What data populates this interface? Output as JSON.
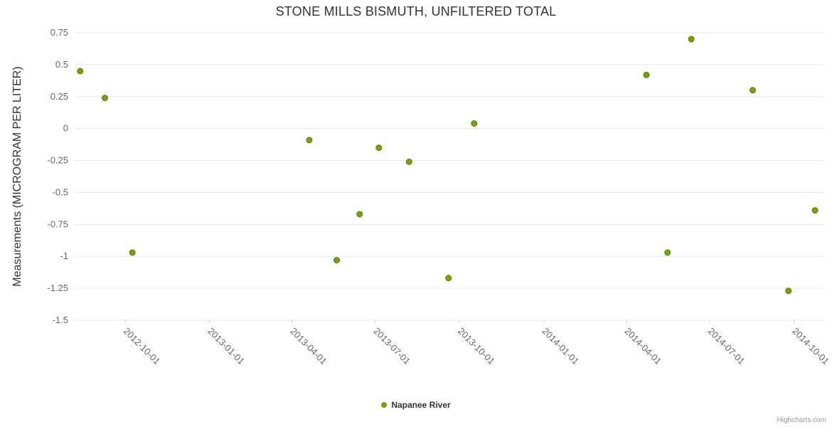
{
  "credits": "Highcharts.com",
  "legend": {
    "items": [
      {
        "label": "Napanee River",
        "color": "#76a30b",
        "stroke": "#5a7d08"
      }
    ]
  },
  "colors": {
    "title_text": "#333333",
    "axis_label_text": "#666666",
    "gridline": "#e6e6e6",
    "tick_mark": "#ccd6eb",
    "point_fill": "#76a30b",
    "point_stroke": "#5a7d08",
    "credits_text": "#999999"
  },
  "chart_data": {
    "type": "scatter",
    "title": "STONE MILLS BISMUTH, UNFILTERED TOTAL",
    "xlabel": "",
    "ylabel": "Measurements (MICROGRAM PER LITER)",
    "grid": "horizontal-only",
    "legend_position": "bottom-center",
    "ylim": [
      -1.5,
      0.75
    ],
    "y_ticks": [
      0.75,
      0.5,
      0.25,
      0,
      -0.25,
      -0.5,
      -0.75,
      -1,
      -1.25,
      -1.5
    ],
    "xlim": [
      "2012-08-07",
      "2014-11-03"
    ],
    "x_ticks": [
      "2012-10-01",
      "2013-01-01",
      "2013-04-01",
      "2013-07-01",
      "2013-10-01",
      "2014-01-01",
      "2014-04-01",
      "2014-07-01",
      "2014-10-01"
    ],
    "x_tick_rotation": 45,
    "series": [
      {
        "name": "Napanee River",
        "color": "#76a30b",
        "stroke": "#5a7d08",
        "points": [
          {
            "date": "2012-08-13",
            "value": 0.45
          },
          {
            "date": "2012-09-09",
            "value": 0.24
          },
          {
            "date": "2012-10-09",
            "value": -0.97
          },
          {
            "date": "2013-04-20",
            "value": -0.09
          },
          {
            "date": "2013-05-20",
            "value": -1.03
          },
          {
            "date": "2013-06-14",
            "value": -0.67
          },
          {
            "date": "2013-07-05",
            "value": -0.15
          },
          {
            "date": "2013-08-07",
            "value": -0.26
          },
          {
            "date": "2013-09-19",
            "value": -1.17
          },
          {
            "date": "2013-10-17",
            "value": 0.04
          },
          {
            "date": "2014-04-23",
            "value": 0.42
          },
          {
            "date": "2014-05-16",
            "value": -0.97
          },
          {
            "date": "2014-06-11",
            "value": 0.7
          },
          {
            "date": "2014-08-17",
            "value": 0.3
          },
          {
            "date": "2014-09-25",
            "value": -1.27
          },
          {
            "date": "2014-10-24",
            "value": -0.64
          }
        ]
      }
    ]
  }
}
